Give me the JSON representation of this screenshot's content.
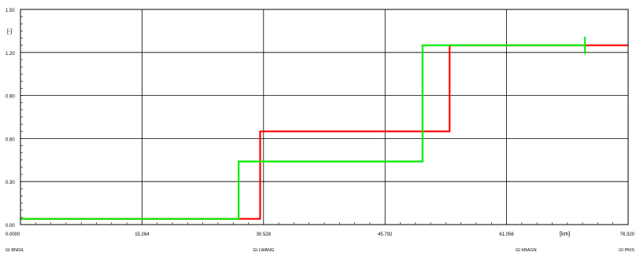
{
  "chart_data": {
    "type": "line",
    "y_unit_label": "[-]",
    "x_unit_label": "[km]",
    "xlim": [
      0,
      76.32
    ],
    "ylim": [
      0,
      1.5
    ],
    "x_ticks": [
      "0.0000",
      "15.264",
      "30.528",
      "45.792",
      "61.056",
      "76.320"
    ],
    "x_tick_values": [
      0,
      15.264,
      30.528,
      45.792,
      61.056,
      76.32
    ],
    "y_ticks": [
      "0.00",
      "0.30",
      "0.60",
      "0.90",
      "1.20",
      "1.50"
    ],
    "y_tick_values": [
      0,
      0.3,
      0.6,
      0.9,
      1.2,
      1.5
    ],
    "grid": true,
    "stations": [
      {
        "label": "GI BNGIL",
        "x": 0
      },
      {
        "label": "GI LWANG",
        "x": 30.528
      },
      {
        "label": "GI KBAGN",
        "x": 63.5
      },
      {
        "label": "GI PKIS",
        "x": 76.32
      }
    ],
    "series": [
      {
        "color": "#ff0000",
        "points": [
          [
            0,
            0.04
          ],
          [
            30.1,
            0.04
          ],
          [
            30.1,
            0.65
          ],
          [
            53.9,
            0.65
          ],
          [
            53.9,
            1.25
          ],
          [
            76.32,
            1.25
          ]
        ]
      },
      {
        "color": "#00ee00",
        "points": [
          [
            0,
            0.04
          ],
          [
            27.4,
            0.04
          ],
          [
            27.4,
            0.44
          ],
          [
            50.5,
            0.44
          ],
          [
            50.5,
            1.25
          ],
          [
            70.9,
            1.25
          ]
        ],
        "end_tick_x": 70.9
      }
    ]
  }
}
